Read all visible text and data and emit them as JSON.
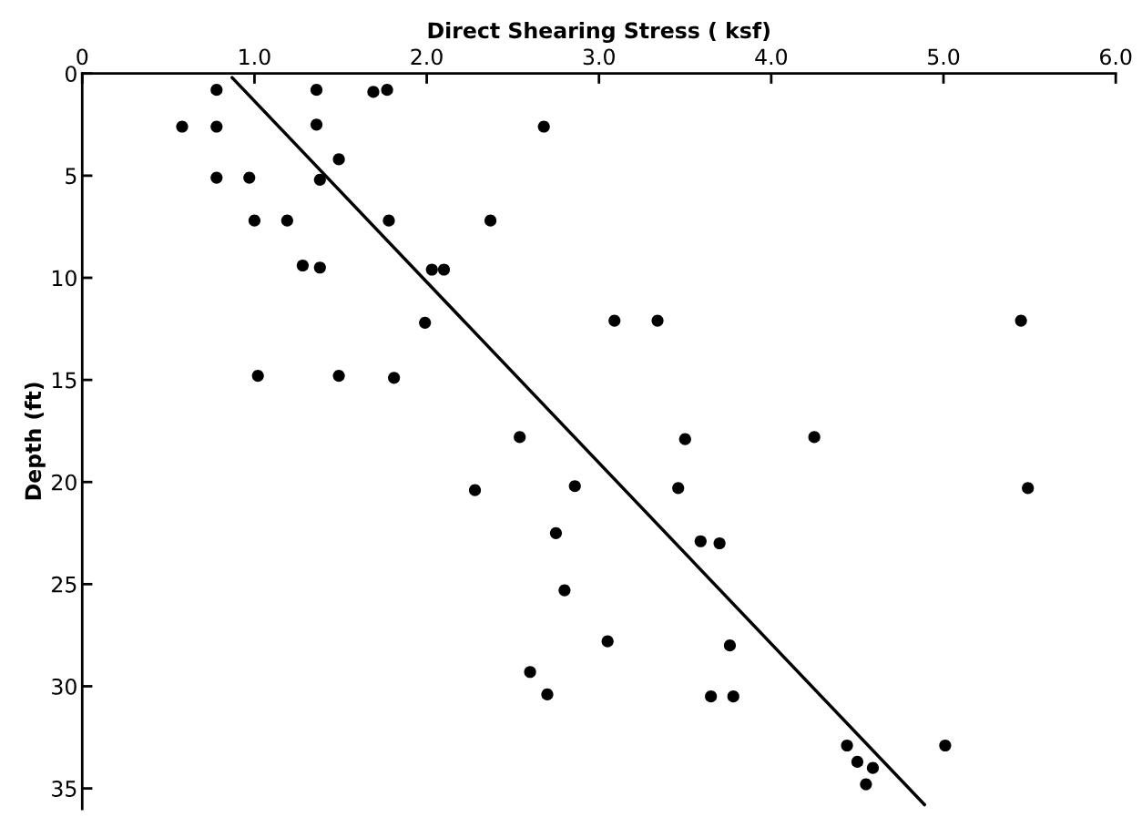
{
  "chart_data": {
    "type": "scatter",
    "xlabel": "Direct Shearing Stress ( ksf)",
    "ylabel": "Depth (ft)",
    "xlim": [
      0,
      6.0
    ],
    "xticks": [
      0,
      {
        "value": 1,
        "label": "1.0"
      },
      {
        "value": 2,
        "label": "2.0"
      },
      {
        "value": 3,
        "label": "3.0"
      },
      {
        "value": 4,
        "label": "4.0"
      },
      {
        "value": 5,
        "label": "5.0"
      },
      {
        "value": 6,
        "label": "6.0"
      }
    ],
    "ylim": [
      36,
      0
    ],
    "yticks": [
      0,
      5,
      10,
      15,
      20,
      25,
      30,
      35
    ],
    "grid": false,
    "legend": false,
    "marker": "circle",
    "series": [
      {
        "color": "#000000",
        "x": [
          0.78,
          1.36,
          1.69,
          1.77,
          0.58,
          0.78,
          1.36,
          2.68,
          1.49,
          0.78,
          0.97,
          1.38,
          1.0,
          1.19,
          1.78,
          2.37,
          1.28,
          1.38,
          2.03,
          2.1,
          1.99,
          3.09,
          3.34,
          5.45,
          1.02,
          1.49,
          1.81,
          2.54,
          3.5,
          4.25,
          2.28,
          2.86,
          3.46,
          5.49,
          2.75,
          3.59,
          3.7,
          2.8,
          3.05,
          3.76,
          2.6,
          2.7,
          3.65,
          3.78,
          4.44,
          4.5,
          4.59,
          4.55,
          5.01
        ],
        "values": [
          0.8,
          0.8,
          0.9,
          0.8,
          2.6,
          2.6,
          2.5,
          2.6,
          4.2,
          5.1,
          5.1,
          5.2,
          7.2,
          7.2,
          7.2,
          7.2,
          9.4,
          9.5,
          9.6,
          9.6,
          12.2,
          12.1,
          12.1,
          12.1,
          14.8,
          14.8,
          14.9,
          17.8,
          17.9,
          17.8,
          20.4,
          20.2,
          20.3,
          20.3,
          22.5,
          22.9,
          23.0,
          25.3,
          27.8,
          28.0,
          29.3,
          30.4,
          30.5,
          30.5,
          32.9,
          33.7,
          34.0,
          34.8,
          32.9
        ]
      },
      {
        "type": "line",
        "color": "#000000",
        "marker": "none",
        "line_style": "solid",
        "x": [
          0.87,
          4.89
        ],
        "values": [
          0.2,
          35.8
        ]
      }
    ]
  }
}
